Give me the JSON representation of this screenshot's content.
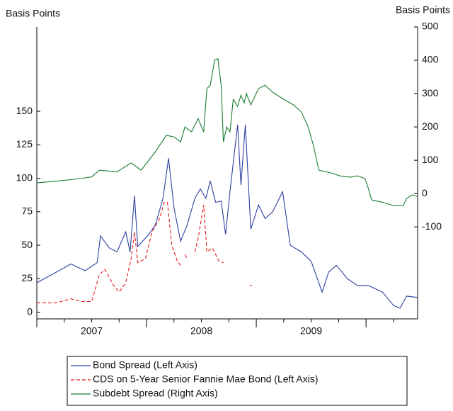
{
  "chart_data": {
    "type": "line",
    "ylabel": "Basis Points",
    "y2label": "Basis Points",
    "xlim": [
      2007.0,
      2010.47
    ],
    "xticks": [
      {
        "value": 2007.5,
        "label": "2007"
      },
      {
        "value": 2008.5,
        "label": "2008"
      },
      {
        "value": 2009.5,
        "label": "2009"
      }
    ],
    "xminorticks": [
      2007.0,
      2007.25,
      2007.5,
      2007.75,
      2008.0,
      2008.25,
      2008.5,
      2008.75,
      2009.0,
      2009.25,
      2009.5,
      2009.75,
      2010.0,
      2010.25
    ],
    "ylim": [
      -5,
      213
    ],
    "yticks": [
      0,
      25,
      50,
      75,
      100,
      125,
      150
    ],
    "y2lim": [
      -376,
      500
    ],
    "y2ticks": [
      -100,
      0,
      100,
      200,
      300,
      400,
      500
    ],
    "grid": false,
    "series": [
      {
        "name": "Bond Spread (Left Axis)",
        "color": "#2b3f9e",
        "axis": "y",
        "dashed": false,
        "x": [
          2007.0,
          2007.18,
          2007.31,
          2007.44,
          2007.55,
          2007.58,
          2007.66,
          2007.73,
          2007.81,
          2007.85,
          2007.89,
          2007.92,
          2008.02,
          2008.08,
          2008.15,
          2008.2,
          2008.25,
          2008.31,
          2008.37,
          2008.44,
          2008.49,
          2008.54,
          2008.58,
          2008.63,
          2008.68,
          2008.72,
          2008.76,
          2008.83,
          2008.86,
          2008.9,
          2008.95,
          2009.02,
          2009.08,
          2009.15,
          2009.24,
          2009.31,
          2009.41,
          2009.5,
          2009.6,
          2009.66,
          2009.73,
          2009.83,
          2009.92,
          2010.02,
          2010.15,
          2010.25,
          2010.31,
          2010.37,
          2010.47
        ],
        "values": [
          22,
          30,
          36,
          31,
          37,
          57,
          48,
          45,
          60,
          45,
          87,
          49,
          58,
          65,
          85,
          115,
          78,
          53,
          65,
          85,
          92,
          85,
          98,
          82,
          83,
          58,
          90,
          140,
          95,
          140,
          62,
          80,
          70,
          75,
          90,
          50,
          45,
          38,
          15,
          30,
          35,
          25,
          20,
          20,
          15,
          5,
          3,
          12,
          11
        ]
      },
      {
        "name": "CDS on 5-Year Senior Fannie Mae Bond (Left Axis)",
        "color": "#e8191c",
        "axis": "y",
        "dashed": true,
        "x": [
          2007.0,
          2007.18,
          2007.31,
          2007.41,
          2007.5,
          2007.57,
          2007.62,
          2007.7,
          2007.75,
          2007.81,
          2007.86,
          2007.89,
          2007.92,
          2007.99,
          2008.05,
          2008.12,
          2008.16,
          2008.19,
          2008.23,
          2008.28,
          2008.31,
          2008.33,
          2008.35,
          2008.37,
          2008.4,
          2008.44,
          2008.47,
          2008.52,
          2008.55,
          2008.6,
          2008.63,
          2008.66,
          2008.7,
          2008.8,
          2008.94,
          2008.96
        ],
        "values": [
          7,
          7,
          10,
          8,
          8,
          28,
          32,
          20,
          15,
          22,
          40,
          60,
          37,
          40,
          60,
          70,
          82,
          82,
          50,
          38,
          35,
          null,
          43,
          40,
          null,
          45,
          55,
          80,
          45,
          48,
          43,
          38,
          37,
          null,
          20,
          20
        ]
      },
      {
        "name": "Subdebt Spread (Right Axis)",
        "color": "#1a7a32",
        "axis": "y2",
        "dashed": false,
        "x": [
          2007.0,
          2007.2,
          2007.4,
          2007.5,
          2007.57,
          2007.73,
          2007.86,
          2007.95,
          2008.08,
          2008.18,
          2008.25,
          2008.31,
          2008.35,
          2008.41,
          2008.47,
          2008.52,
          2008.55,
          2008.58,
          2008.62,
          2008.65,
          2008.68,
          2008.7,
          2008.73,
          2008.76,
          2008.79,
          2008.83,
          2008.86,
          2008.89,
          2008.91,
          2008.95,
          2009.02,
          2009.08,
          2009.15,
          2009.25,
          2009.34,
          2009.41,
          2009.47,
          2009.52,
          2009.57,
          2009.63,
          2009.7,
          2009.76,
          2009.86,
          2009.92,
          2009.99,
          2010.02,
          2010.05,
          2010.15,
          2010.25,
          2010.34,
          2010.37,
          2010.42,
          2010.47
        ],
        "values": [
          32,
          38,
          45,
          50,
          70,
          65,
          92,
          70,
          125,
          175,
          170,
          155,
          200,
          185,
          225,
          185,
          315,
          325,
          400,
          405,
          325,
          155,
          200,
          185,
          283,
          262,
          295,
          272,
          300,
          266,
          315,
          325,
          304,
          283,
          266,
          245,
          202,
          145,
          70,
          66,
          60,
          53,
          49,
          53,
          45,
          17,
          -19,
          -26,
          -36,
          -36,
          -15,
          -4,
          -9
        ]
      }
    ]
  }
}
